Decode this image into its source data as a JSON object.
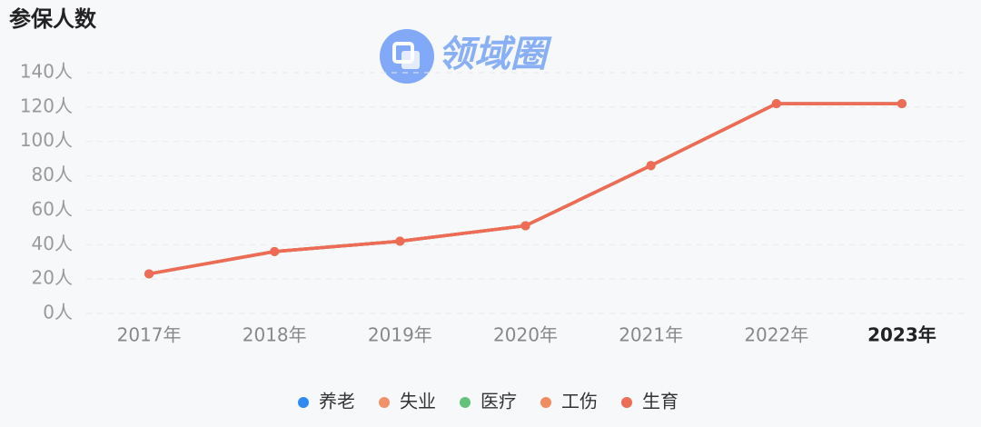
{
  "chart_data": {
    "type": "line",
    "title": "参保人数",
    "watermark": "领域圈",
    "categories": [
      "2017年",
      "2018年",
      "2019年",
      "2020年",
      "2021年",
      "2022年",
      "2023年"
    ],
    "highlight_category": 6,
    "series": [
      {
        "name": "养老",
        "color": "#2f89f5",
        "values": [
          23,
          36,
          42,
          51,
          86,
          122,
          122
        ]
      },
      {
        "name": "失业",
        "color": "#f0916a",
        "values": [
          23,
          36,
          42,
          51,
          86,
          122,
          122
        ]
      },
      {
        "name": "医疗",
        "color": "#62c17a",
        "values": [
          23,
          36,
          42,
          51,
          86,
          122,
          122
        ]
      },
      {
        "name": "工伤",
        "color": "#f08c5e",
        "values": [
          23,
          36,
          42,
          51,
          86,
          122,
          122
        ]
      },
      {
        "name": "生育",
        "color": "#ee6b55",
        "values": [
          23,
          36,
          42,
          51,
          86,
          122,
          122
        ]
      }
    ],
    "ylim": [
      0,
      140
    ],
    "yticks": [
      {
        "value": 0,
        "label": "0人"
      },
      {
        "value": 20,
        "label": "20人"
      },
      {
        "value": 40,
        "label": "40人"
      },
      {
        "value": 60,
        "label": "60人"
      },
      {
        "value": 80,
        "label": "80人"
      },
      {
        "value": 100,
        "label": "100人"
      },
      {
        "value": 120,
        "label": "120人"
      },
      {
        "value": 140,
        "label": "140人"
      }
    ],
    "grid": true
  }
}
